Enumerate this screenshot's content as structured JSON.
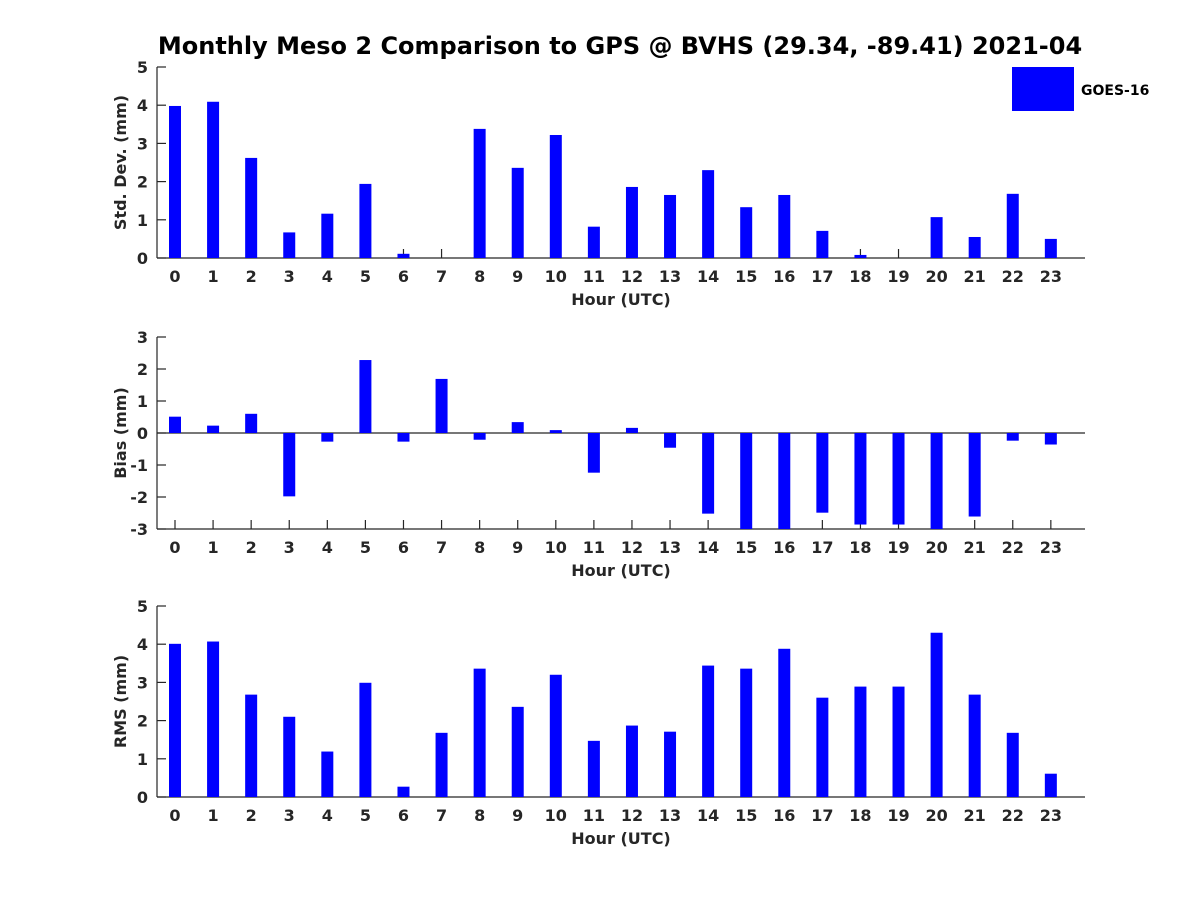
{
  "title": "Monthly Meso 2 Comparison to GPS @ BVHS (29.34, -89.41) 2021-04",
  "legend": {
    "label": "GOES-16",
    "color": "#0000ff",
    "placement": "top-right"
  },
  "chart_data": [
    {
      "type": "bar",
      "name": "std-dev",
      "title": "Monthly Meso 2 Comparison to GPS @ BVHS (29.34, -89.41) 2021-04",
      "xlabel": "Hour (UTC)",
      "ylabel": "Std. Dev. (mm)",
      "ylim": [
        0,
        5
      ],
      "yticks": [
        "0",
        "1",
        "2",
        "3",
        "4",
        "5"
      ],
      "grid": false,
      "categories": [
        "0",
        "1",
        "2",
        "3",
        "4",
        "5",
        "6",
        "7",
        "8",
        "9",
        "10",
        "11",
        "12",
        "13",
        "14",
        "15",
        "16",
        "17",
        "18",
        "19",
        "20",
        "21",
        "22",
        "23"
      ],
      "series": [
        {
          "name": "GOES-16",
          "color": "#0000ff",
          "values": [
            3.98,
            4.09,
            2.62,
            0.67,
            1.16,
            1.94,
            0.11,
            null,
            3.38,
            2.36,
            3.22,
            0.82,
            1.86,
            1.65,
            2.3,
            1.33,
            1.65,
            0.71,
            0.08,
            null,
            1.07,
            0.55,
            1.68,
            0.5
          ]
        }
      ]
    },
    {
      "type": "bar",
      "name": "bias",
      "xlabel": "Hour (UTC)",
      "ylabel": "Bias (mm)",
      "ylim": [
        -3,
        3
      ],
      "yticks": [
        "-3",
        "-2",
        "-1",
        "0",
        "1",
        "2",
        "3"
      ],
      "grid": false,
      "categories": [
        "0",
        "1",
        "2",
        "3",
        "4",
        "5",
        "6",
        "7",
        "8",
        "9",
        "10",
        "11",
        "12",
        "13",
        "14",
        "15",
        "16",
        "17",
        "18",
        "19",
        "20",
        "21",
        "22",
        "23"
      ],
      "series": [
        {
          "name": "GOES-16",
          "color": "#0000ff",
          "values": [
            0.51,
            0.23,
            0.6,
            -1.98,
            -0.27,
            2.28,
            -0.27,
            1.69,
            -0.21,
            0.34,
            0.09,
            -1.24,
            0.16,
            -0.46,
            -2.52,
            -3.2,
            -3.2,
            -2.49,
            -2.86,
            -2.86,
            -3.2,
            -2.61,
            -0.24,
            -0.36
          ]
        }
      ]
    },
    {
      "type": "bar",
      "name": "rms",
      "xlabel": "Hour (UTC)",
      "ylabel": "RMS (mm)",
      "ylim": [
        0,
        5
      ],
      "yticks": [
        "0",
        "1",
        "2",
        "3",
        "4",
        "5"
      ],
      "grid": false,
      "categories": [
        "0",
        "1",
        "2",
        "3",
        "4",
        "5",
        "6",
        "7",
        "8",
        "9",
        "10",
        "11",
        "12",
        "13",
        "14",
        "15",
        "16",
        "17",
        "18",
        "19",
        "20",
        "21",
        "22",
        "23"
      ],
      "series": [
        {
          "name": "GOES-16",
          "color": "#0000ff",
          "values": [
            4.01,
            4.07,
            2.68,
            2.1,
            1.19,
            2.99,
            0.27,
            1.68,
            3.36,
            2.36,
            3.2,
            1.47,
            1.87,
            1.71,
            3.44,
            3.36,
            3.88,
            2.6,
            2.89,
            2.89,
            4.3,
            2.68,
            1.68,
            0.61
          ]
        }
      ]
    }
  ]
}
